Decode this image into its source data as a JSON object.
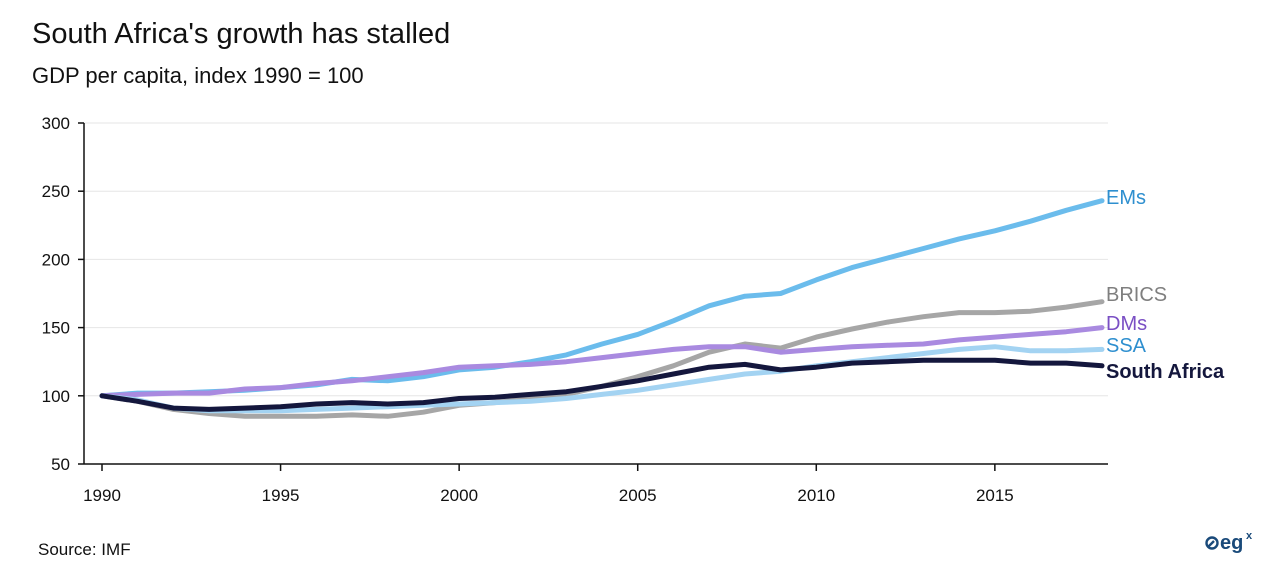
{
  "title": "South Africa's growth has stalled",
  "subtitle": "GDP per capita, index 1990 = 100",
  "source": "Source: IMF",
  "logo": {
    "icon": "egx-logo",
    "text": "eg",
    "superscript": "x",
    "color": "#1a4a7a"
  },
  "chart_data": {
    "type": "line",
    "xlim": [
      1990,
      2019
    ],
    "ylim": [
      50,
      300
    ],
    "yticks": [
      50,
      100,
      150,
      200,
      250,
      300
    ],
    "xticks": [
      1990,
      1995,
      2000,
      2005,
      2010,
      2015
    ],
    "grid": "horizontal",
    "x": [
      1990,
      1991,
      1992,
      1993,
      1994,
      1995,
      1996,
      1997,
      1998,
      1999,
      2000,
      2001,
      2002,
      2003,
      2004,
      2005,
      2006,
      2007,
      2008,
      2009,
      2010,
      2011,
      2012,
      2013,
      2014,
      2015,
      2016,
      2017,
      2018
    ],
    "series": [
      {
        "name": "EMs",
        "color": "#6bbcec",
        "label_color": "#2e8fcf",
        "bold": false,
        "values": [
          100,
          102,
          102,
          103,
          104,
          106,
          108,
          112,
          111,
          114,
          119,
          121,
          125,
          130,
          138,
          145,
          155,
          166,
          173,
          175,
          185,
          194,
          201,
          208,
          215,
          221,
          228,
          236,
          243
        ]
      },
      {
        "name": "BRICS",
        "color": "#a6a6a6",
        "label_color": "#7f7f7f",
        "bold": false,
        "values": [
          100,
          96,
          90,
          87,
          85,
          85,
          85,
          86,
          85,
          88,
          93,
          95,
          98,
          101,
          107,
          114,
          122,
          132,
          138,
          135,
          143,
          149,
          154,
          158,
          161,
          161,
          162,
          165,
          169
        ]
      },
      {
        "name": "DMs",
        "color": "#a98ae0",
        "label_color": "#7a4fc4",
        "bold": false,
        "values": [
          100,
          101,
          102,
          102,
          105,
          106,
          109,
          111,
          114,
          117,
          121,
          122,
          123,
          125,
          128,
          131,
          134,
          136,
          136,
          132,
          134,
          136,
          137,
          138,
          141,
          143,
          145,
          147,
          150
        ]
      },
      {
        "name": "SSA",
        "color": "#a3d3f2",
        "label_color": "#2e8fcf",
        "bold": false,
        "values": [
          100,
          97,
          91,
          89,
          89,
          89,
          90,
          91,
          92,
          93,
          94,
          95,
          96,
          98,
          101,
          104,
          108,
          112,
          116,
          118,
          122,
          125,
          128,
          131,
          134,
          136,
          133,
          133,
          134
        ]
      },
      {
        "name": "South Africa",
        "color": "#14173d",
        "label_color": "#14173d",
        "bold": true,
        "values": [
          100,
          96,
          91,
          90,
          91,
          92,
          94,
          95,
          94,
          95,
          98,
          99,
          101,
          103,
          107,
          111,
          116,
          121,
          123,
          119,
          121,
          124,
          125,
          126,
          126,
          126,
          124,
          124,
          122
        ]
      }
    ]
  }
}
